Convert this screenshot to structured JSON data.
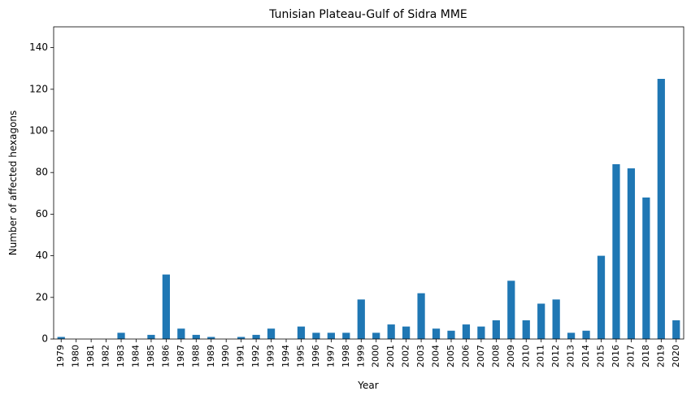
{
  "chart_data": {
    "type": "bar",
    "title": "Tunisian Plateau-Gulf of Sidra MME",
    "xlabel": "Year",
    "ylabel": "Number of affected hexagons",
    "ylim": [
      0,
      150
    ],
    "yticks": [
      0,
      20,
      40,
      60,
      80,
      100,
      120,
      140
    ],
    "grid": false,
    "bar_color": "#1f77b4",
    "categories": [
      "1979",
      "1980",
      "1981",
      "1982",
      "1983",
      "1984",
      "1985",
      "1986",
      "1987",
      "1988",
      "1989",
      "1990",
      "1991",
      "1992",
      "1993",
      "1994",
      "1995",
      "1996",
      "1997",
      "1998",
      "1999",
      "2000",
      "2001",
      "2002",
      "2003",
      "2004",
      "2005",
      "2006",
      "2007",
      "2008",
      "2009",
      "2010",
      "2011",
      "2012",
      "2013",
      "2014",
      "2015",
      "2016",
      "2017",
      "2018",
      "2019",
      "2020"
    ],
    "values": [
      1,
      0,
      0,
      0,
      3,
      0,
      2,
      31,
      5,
      2,
      1,
      0,
      1,
      2,
      5,
      0,
      6,
      3,
      3,
      3,
      19,
      3,
      7,
      6,
      22,
      5,
      4,
      7,
      6,
      9,
      28,
      9,
      17,
      19,
      3,
      4,
      40,
      84,
      82,
      68,
      125,
      9
    ]
  }
}
